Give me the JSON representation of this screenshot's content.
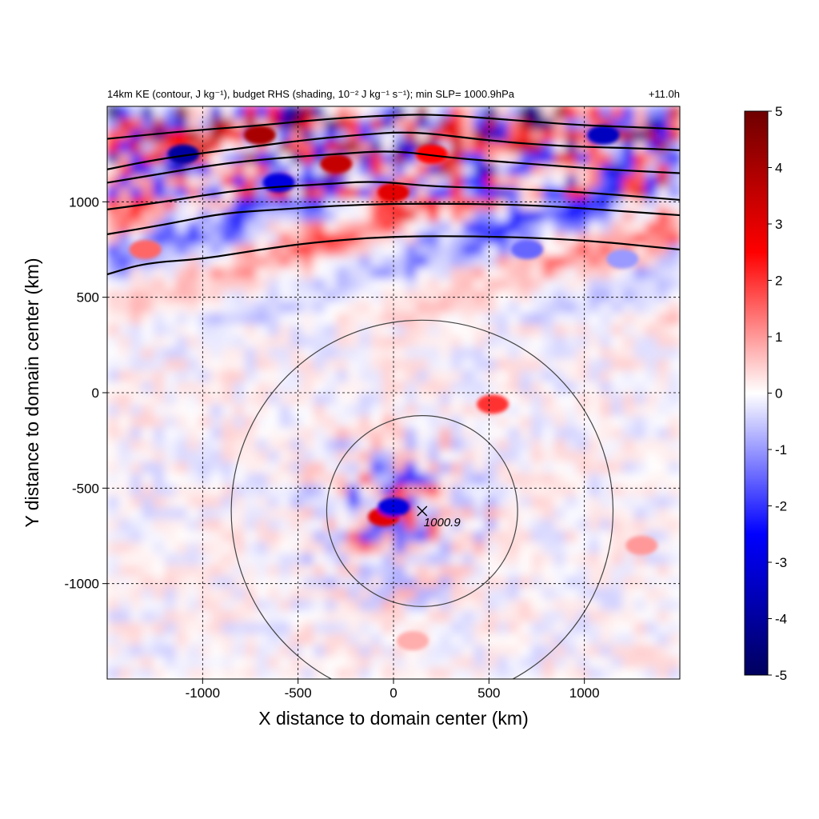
{
  "chart_data": {
    "type": "heatmap",
    "title_left": "14km KE (contour, J kg⁻¹), budget RHS (shading, 10⁻² J kg⁻¹ s⁻¹); min SLP= 1000.9hPa",
    "title_right": "+11.0h",
    "xlabel": "X distance to domain center (km)",
    "ylabel": "Y distance to domain center (km)",
    "xlim": [
      -1500,
      1500
    ],
    "ylim": [
      -1500,
      1500
    ],
    "x_ticks": [
      -1000,
      -500,
      0,
      500,
      1000
    ],
    "y_ticks": [
      -1000,
      -500,
      0,
      500,
      1000
    ],
    "x_tick_labels": [
      "-1000",
      "-500",
      "0",
      "500",
      "1000"
    ],
    "y_tick_labels": [
      "-1000",
      "-500",
      "0",
      "500",
      "1000"
    ],
    "grid": true,
    "colorbar": {
      "min": -5,
      "max": 5,
      "ticks": [
        5,
        4,
        3,
        2,
        1,
        0,
        -1,
        -2,
        -3,
        -4,
        -5
      ],
      "tick_labels": [
        "5",
        "4",
        "3",
        "2",
        "1",
        "0",
        "-1",
        "-2",
        "-3",
        "-4",
        "-5"
      ],
      "colors": [
        "#00005e",
        "#0000ff",
        "#ffffff",
        "#ff0000",
        "#6e0000"
      ]
    },
    "storm_center": {
      "x": 150,
      "y": -620,
      "label": "1000.9"
    },
    "range_circles_km": [
      500,
      1000
    ],
    "ke_contours": [
      {
        "points": [
          [
            -1500,
            620
          ],
          [
            -1300,
            680
          ],
          [
            -1000,
            700
          ],
          [
            -700,
            750
          ],
          [
            -400,
            790
          ],
          [
            0,
            820
          ],
          [
            500,
            820
          ],
          [
            1000,
            800
          ],
          [
            1500,
            750
          ]
        ]
      },
      {
        "points": [
          [
            -1500,
            830
          ],
          [
            -1200,
            880
          ],
          [
            -900,
            940
          ],
          [
            -600,
            960
          ],
          [
            -300,
            980
          ],
          [
            0,
            990
          ],
          [
            400,
            990
          ],
          [
            800,
            980
          ],
          [
            1200,
            950
          ],
          [
            1500,
            930
          ]
        ]
      },
      {
        "points": [
          [
            -1500,
            960
          ],
          [
            -1200,
            1000
          ],
          [
            -900,
            1050
          ],
          [
            -600,
            1080
          ],
          [
            -400,
            1090
          ],
          [
            -100,
            1110
          ],
          [
            200,
            1080
          ],
          [
            600,
            1070
          ],
          [
            1000,
            1050
          ],
          [
            1500,
            1010
          ]
        ]
      },
      {
        "points": [
          [
            -1500,
            1100
          ],
          [
            -1200,
            1150
          ],
          [
            -900,
            1200
          ],
          [
            -600,
            1230
          ],
          [
            -300,
            1250
          ],
          [
            0,
            1270
          ],
          [
            300,
            1230
          ],
          [
            700,
            1200
          ],
          [
            1100,
            1170
          ],
          [
            1500,
            1150
          ]
        ]
      },
      {
        "points": [
          [
            -1500,
            1170
          ],
          [
            -1200,
            1230
          ],
          [
            -800,
            1280
          ],
          [
            -500,
            1320
          ],
          [
            -200,
            1350
          ],
          [
            100,
            1370
          ],
          [
            500,
            1320
          ],
          [
            900,
            1290
          ],
          [
            1300,
            1280
          ],
          [
            1500,
            1270
          ]
        ]
      },
      {
        "points": [
          [
            -1500,
            1330
          ],
          [
            -1100,
            1370
          ],
          [
            -700,
            1400
          ],
          [
            -400,
            1430
          ],
          [
            -100,
            1450
          ],
          [
            200,
            1460
          ],
          [
            600,
            1430
          ],
          [
            1000,
            1400
          ],
          [
            1300,
            1390
          ],
          [
            1500,
            1380
          ]
        ]
      }
    ],
    "shading_features": [
      {
        "x": 0,
        "y": 1050,
        "value": 3.0
      },
      {
        "x": -1100,
        "y": 1250,
        "value": -4.0
      },
      {
        "x": -700,
        "y": 1350,
        "value": 4.0
      },
      {
        "x": -600,
        "y": 1100,
        "value": -3.0
      },
      {
        "x": -300,
        "y": 1200,
        "value": 3.5
      },
      {
        "x": 200,
        "y": 1250,
        "value": 2.5
      },
      {
        "x": 1100,
        "y": 1350,
        "value": -3.5
      },
      {
        "x": 700,
        "y": 750,
        "value": -1.5
      },
      {
        "x": 1200,
        "y": 700,
        "value": -1.0
      },
      {
        "x": -1300,
        "y": 750,
        "value": 1.5
      },
      {
        "x": -50,
        "y": -650,
        "value": 3.0
      },
      {
        "x": 0,
        "y": -600,
        "value": -3.0
      },
      {
        "x": 520,
        "y": -60,
        "value": 2.0
      },
      {
        "x": 1300,
        "y": -800,
        "value": 1.0
      },
      {
        "x": 100,
        "y": -1300,
        "value": 0.8
      }
    ]
  }
}
